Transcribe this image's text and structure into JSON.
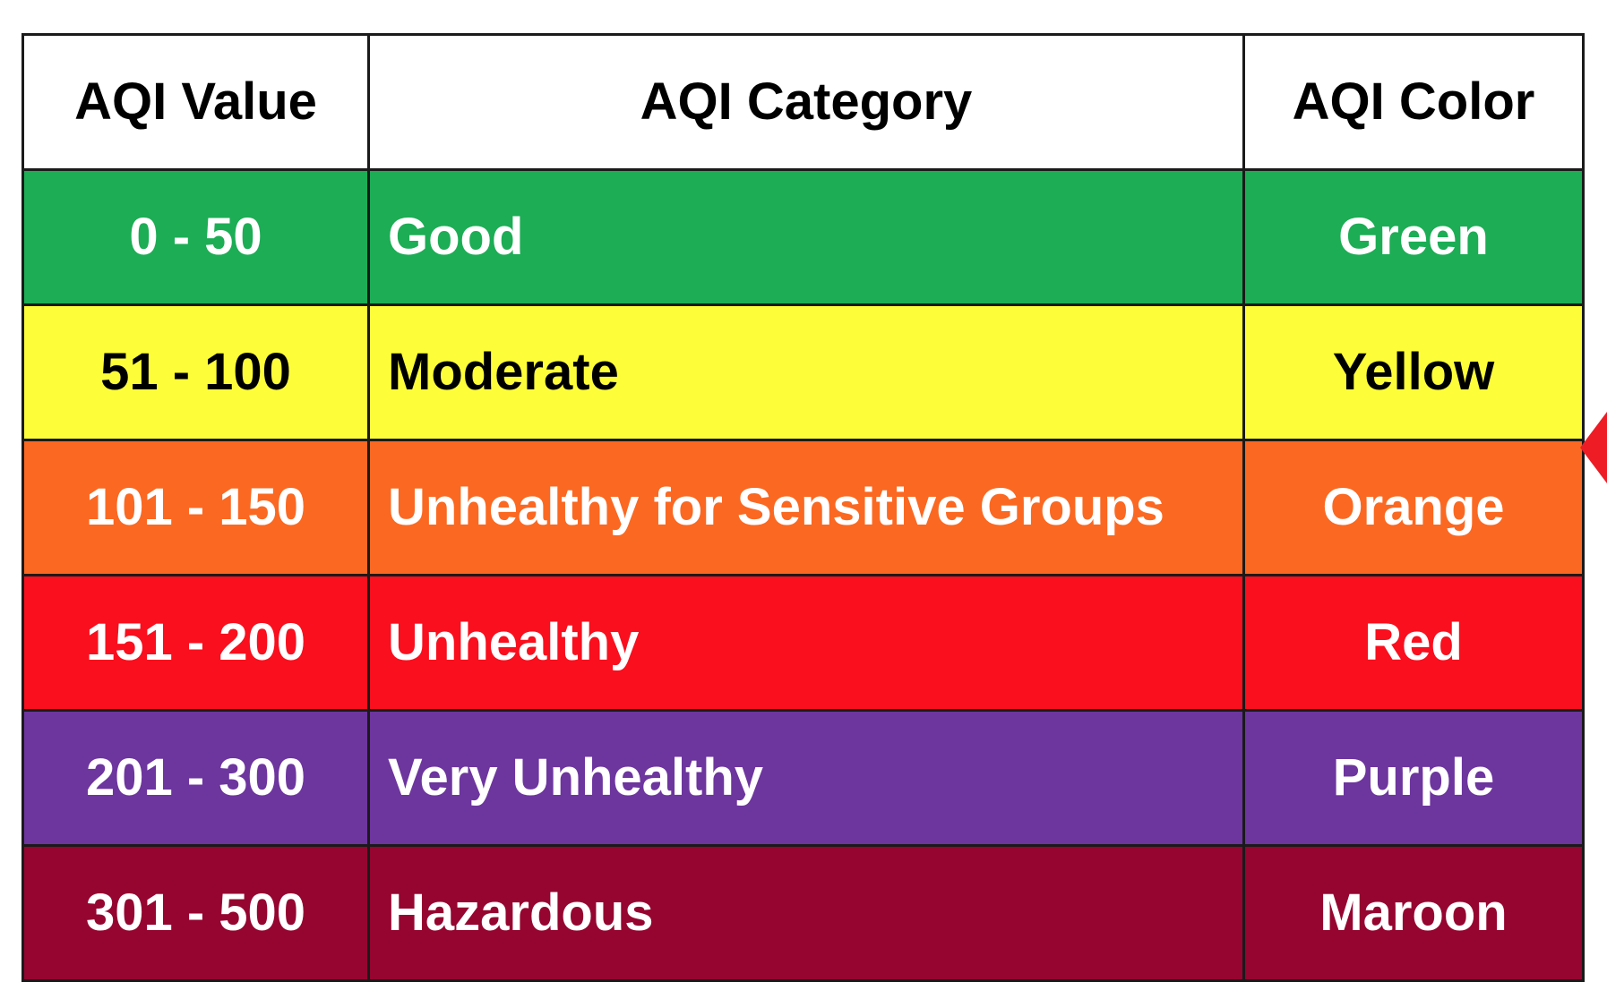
{
  "table": {
    "headers": {
      "value": "AQI Value",
      "category": "AQI Category",
      "color": "AQI Color"
    },
    "rows": [
      {
        "value": "0 - 50",
        "category": "Good",
        "color": "Green",
        "bg": "#1cad55",
        "fg": "#ffffff"
      },
      {
        "value": "51 - 100",
        "category": "Moderate",
        "color": "Yellow",
        "bg": "#fdfd3a",
        "fg": "#000000"
      },
      {
        "value": "101 - 150",
        "category": "Unhealthy for Sensitive Groups",
        "color": "Orange",
        "bg": "#fb6821",
        "fg": "#ffffff"
      },
      {
        "value": "151 - 200",
        "category": "Unhealthy",
        "color": "Red",
        "bg": "#f90f1d",
        "fg": "#ffffff"
      },
      {
        "value": "201 - 300",
        "category": "Very Unhealthy",
        "color": "Purple",
        "bg": "#6d359e",
        "fg": "#ffffff"
      },
      {
        "value": "301 - 500",
        "category": "Hazardous",
        "color": "Maroon",
        "bg": "#950530",
        "fg": "#ffffff"
      }
    ]
  },
  "pointer_color": "#ee1c25"
}
